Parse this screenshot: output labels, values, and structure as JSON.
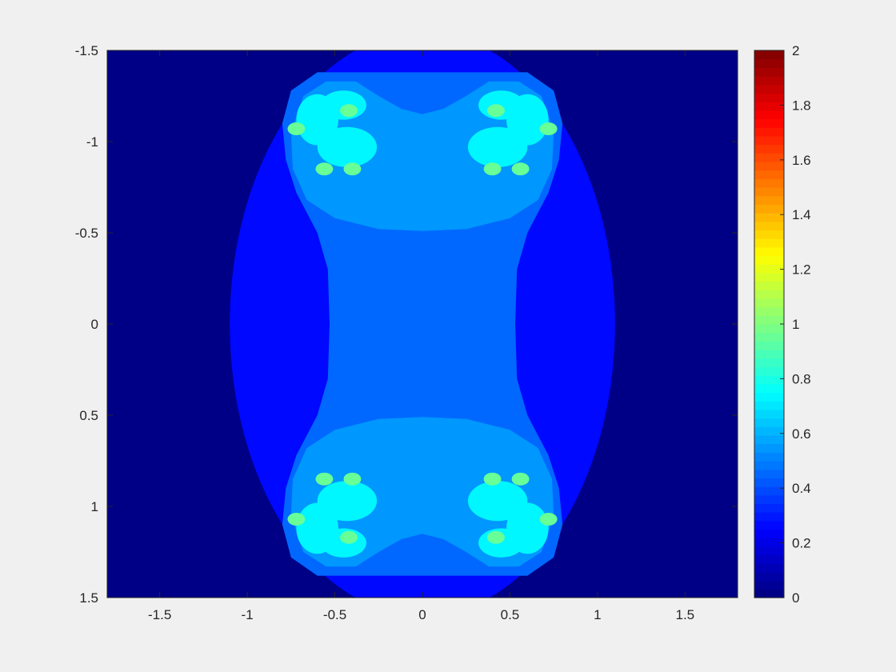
{
  "chart_data": {
    "type": "heatmap",
    "title": "",
    "xlabel": "",
    "ylabel": "",
    "xlim": [
      -1.8,
      1.8
    ],
    "ylim": [
      -1.5,
      1.5
    ],
    "y_direction": "reversed",
    "x_ticks": [
      -1.5,
      -1,
      -0.5,
      0,
      0.5,
      1,
      1.5
    ],
    "x_tick_labels": [
      "-1.5",
      "-1",
      "-0.5",
      "0",
      "0.5",
      "1",
      "1.5"
    ],
    "y_ticks": [
      -1.5,
      -1,
      -0.5,
      0,
      0.5,
      1,
      1.5
    ],
    "y_tick_labels": [
      "-1.5",
      "-1",
      "-0.5",
      "0",
      "0.5",
      "1",
      "1.5"
    ],
    "grid": false,
    "colormap": "jet",
    "colormap_levels": 64,
    "clim": [
      0,
      2
    ],
    "colorbar_ticks": [
      0,
      0.2,
      0.4,
      0.6,
      0.8,
      1,
      1.2,
      1.4,
      1.6,
      1.8,
      2
    ],
    "colorbar_tick_labels": [
      "0",
      "0.2",
      "0.4",
      "0.6",
      "0.8",
      "1",
      "1.2",
      "1.4",
      "1.6",
      "1.8",
      "2"
    ],
    "colorbar_location": "right",
    "regions": [
      {
        "name": "background",
        "value": 0.0
      },
      {
        "name": "outer oval",
        "value": 0.25
      },
      {
        "name": "hourglass",
        "value": 0.44
      },
      {
        "name": "upper and lower lobes",
        "value": 0.56
      },
      {
        "name": "bulb rounded rectangles",
        "value": 0.5
      },
      {
        "name": "side bulbs",
        "value": 0.72
      },
      {
        "name": "bulb tips",
        "value": 0.95
      }
    ]
  }
}
